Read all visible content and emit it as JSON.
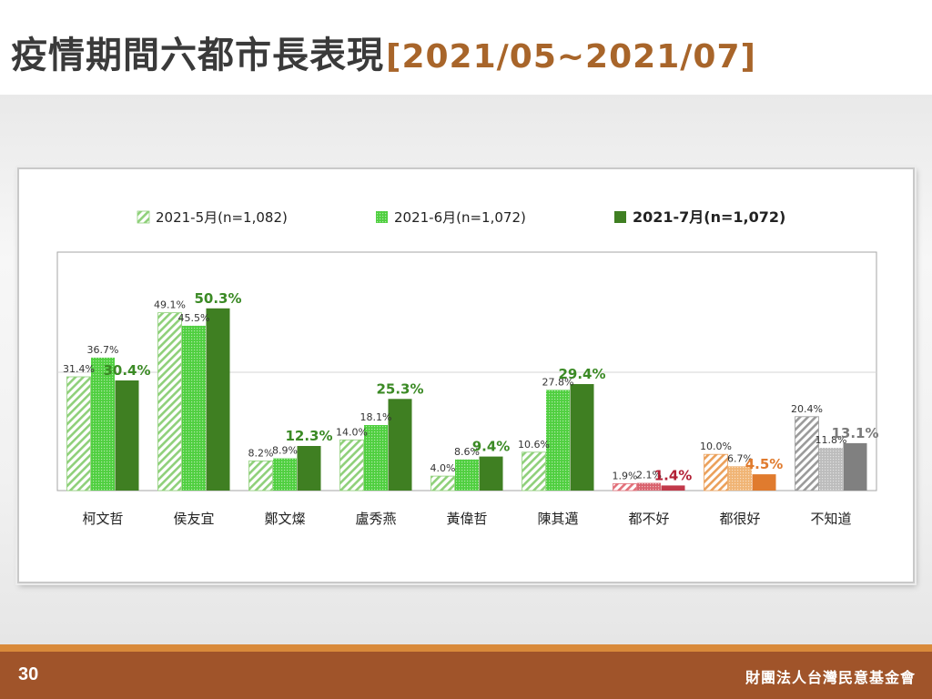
{
  "header": {
    "title": "疫情期間六都市長表現",
    "period": "[2021/05~2021/07]"
  },
  "footer": {
    "page_number": "30",
    "organization": "財團法人台灣民意基金會"
  },
  "chart_data": {
    "type": "bar",
    "title": "",
    "xlabel": "",
    "ylabel": "",
    "ylim": [
      0,
      60
    ],
    "grid": "single horizontal reference line",
    "legend_position": "top",
    "categories": [
      "柯文哲",
      "侯友宜",
      "鄭文燦",
      "盧秀燕",
      "黃偉哲",
      "陳其邁",
      "都不好",
      "都很好",
      "不知道"
    ],
    "series": [
      {
        "name": "2021-5月(n=1,082)",
        "pattern": "hatch",
        "values": [
          31.4,
          49.1,
          8.2,
          14.0,
          4.0,
          10.6,
          1.9,
          10.0,
          20.4
        ],
        "labels": [
          "31.4%",
          "49.1%",
          "8.2%",
          "14.0%",
          "4.0%",
          "10.6%",
          "1.9%",
          "10.0%",
          "20.4%"
        ]
      },
      {
        "name": "2021-6月(n=1,072)",
        "pattern": "dots",
        "values": [
          36.7,
          45.5,
          8.9,
          18.1,
          8.6,
          27.8,
          2.1,
          6.7,
          11.8
        ],
        "labels": [
          "36.7%",
          "45.5%",
          "8.9%",
          "18.1%",
          "8.6%",
          "27.8%",
          "2.1%",
          "6.7%",
          "11.8%"
        ]
      },
      {
        "name": "2021-7月(n=1,072)",
        "pattern": "solid",
        "values": [
          30.4,
          50.3,
          12.3,
          25.3,
          9.4,
          29.4,
          1.4,
          4.5,
          13.1
        ],
        "labels": [
          "30.4%",
          "50.3%",
          "12.3%",
          "25.3%",
          "9.4%",
          "29.4%",
          "1.4%",
          "4.5%",
          "13.1%"
        ]
      }
    ],
    "colors": {
      "green": {
        "hatch": "#8fd07a",
        "dots": "#4fcf3f",
        "solid": "#3f7f22",
        "label": "#3b8a25"
      },
      "red": {
        "hatch": "#e2707a",
        "dots": "#d9636e",
        "solid": "#c2394a",
        "label": "#b22035"
      },
      "orange": {
        "hatch": "#eba05a",
        "dots": "#f0b474",
        "solid": "#e07b2e",
        "label": "#e07b2e"
      },
      "gray": {
        "hatch": "#9a9a9a",
        "dots": "#bcbcbc",
        "solid": "#808080",
        "label": "#7a7a7a"
      }
    },
    "category_palette": [
      "green",
      "green",
      "green",
      "green",
      "green",
      "green",
      "red",
      "orange",
      "gray"
    ]
  }
}
